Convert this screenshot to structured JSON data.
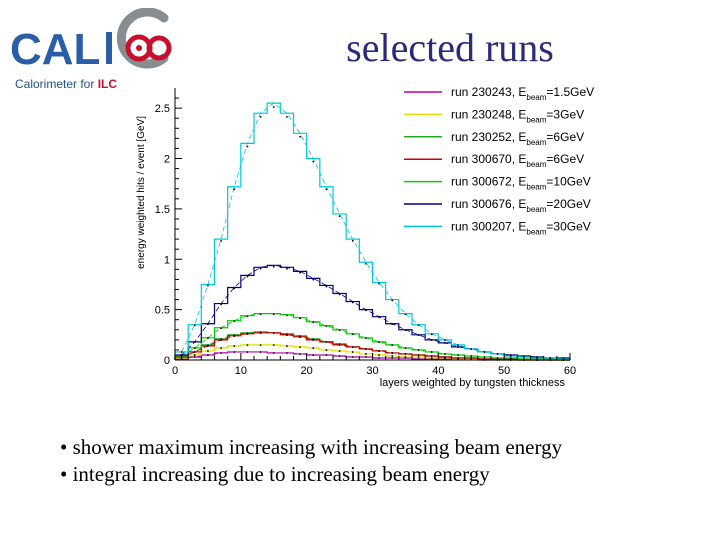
{
  "header": {
    "logo_text": "CALICE",
    "logo_subtitle_prefix": "Calorimeter for ",
    "logo_subtitle_suffix": "ILC",
    "title": "selected runs"
  },
  "chart_data": {
    "type": "line",
    "xlabel": "layers weighted by tungsten thickness",
    "ylabel": "energy weighted hits / event [GeV]",
    "xlim": [
      0,
      60
    ],
    "ylim": [
      0,
      2.7
    ],
    "xticks": [
      0,
      10,
      20,
      30,
      40,
      50,
      60
    ],
    "yticks": [
      0,
      0.5,
      1,
      1.5,
      2,
      2.5
    ],
    "legend_position": "top-right",
    "x": [
      1,
      3,
      5,
      7,
      9,
      11,
      13,
      15,
      17,
      19,
      21,
      23,
      25,
      27,
      29,
      31,
      33,
      35,
      37,
      39,
      41,
      43,
      45,
      47,
      49,
      51,
      53,
      55,
      57,
      59
    ],
    "series": [
      {
        "name": "run 230243",
        "energy": "1.5GeV",
        "color": "#b400b4",
        "values": [
          0.01,
          0.03,
          0.05,
          0.07,
          0.08,
          0.08,
          0.08,
          0.07,
          0.07,
          0.06,
          0.05,
          0.05,
          0.04,
          0.03,
          0.03,
          0.02,
          0.02,
          0.02,
          0.01,
          0.01,
          0.01,
          0.01,
          0.01,
          0.0,
          0.0,
          0.0,
          0.0,
          0.0,
          0.0,
          0.0
        ]
      },
      {
        "name": "run 230248",
        "energy": "3GeV",
        "color": "#e0e000",
        "values": [
          0.02,
          0.05,
          0.09,
          0.12,
          0.14,
          0.15,
          0.15,
          0.15,
          0.14,
          0.13,
          0.12,
          0.1,
          0.09,
          0.08,
          0.06,
          0.05,
          0.04,
          0.03,
          0.03,
          0.02,
          0.02,
          0.01,
          0.01,
          0.01,
          0.01,
          0.0,
          0.0,
          0.0,
          0.0,
          0.0
        ]
      },
      {
        "name": "run 230252",
        "energy": "6GeV",
        "color": "#22aa22",
        "values": [
          0.03,
          0.08,
          0.15,
          0.21,
          0.25,
          0.27,
          0.28,
          0.27,
          0.26,
          0.24,
          0.21,
          0.18,
          0.16,
          0.13,
          0.11,
          0.09,
          0.07,
          0.06,
          0.05,
          0.04,
          0.03,
          0.02,
          0.02,
          0.01,
          0.01,
          0.01,
          0.01,
          0.0,
          0.0,
          0.0
        ]
      },
      {
        "name": "run 300670",
        "energy": "6GeV",
        "color": "#cc0000",
        "values": [
          0.03,
          0.08,
          0.14,
          0.2,
          0.24,
          0.26,
          0.27,
          0.27,
          0.25,
          0.23,
          0.2,
          0.18,
          0.15,
          0.13,
          0.11,
          0.09,
          0.07,
          0.06,
          0.05,
          0.04,
          0.03,
          0.02,
          0.02,
          0.01,
          0.01,
          0.01,
          0.0,
          0.0,
          0.0,
          0.0
        ]
      },
      {
        "name": "run 300672",
        "energy": "10GeV",
        "color": "#00cc00",
        "values": [
          0.04,
          0.12,
          0.22,
          0.32,
          0.39,
          0.44,
          0.46,
          0.46,
          0.45,
          0.42,
          0.38,
          0.34,
          0.3,
          0.26,
          0.22,
          0.18,
          0.15,
          0.12,
          0.1,
          0.08,
          0.06,
          0.05,
          0.04,
          0.03,
          0.02,
          0.02,
          0.01,
          0.01,
          0.01,
          0.0
        ]
      },
      {
        "name": "run 300676",
        "energy": "20GeV",
        "color": "#000080",
        "values": [
          0.05,
          0.18,
          0.36,
          0.56,
          0.72,
          0.84,
          0.92,
          0.94,
          0.92,
          0.88,
          0.81,
          0.74,
          0.66,
          0.58,
          0.5,
          0.43,
          0.36,
          0.3,
          0.25,
          0.2,
          0.17,
          0.13,
          0.11,
          0.08,
          0.06,
          0.05,
          0.04,
          0.03,
          0.02,
          0.02
        ]
      },
      {
        "name": "run 300207",
        "energy": "30GeV",
        "color": "#00c8d8",
        "values": [
          0.08,
          0.35,
          0.75,
          1.2,
          1.72,
          2.15,
          2.45,
          2.55,
          2.45,
          2.25,
          2.0,
          1.72,
          1.45,
          1.2,
          0.97,
          0.77,
          0.6,
          0.46,
          0.35,
          0.26,
          0.2,
          0.15,
          0.11,
          0.08,
          0.06,
          0.04,
          0.03,
          0.02,
          0.02,
          0.01
        ]
      }
    ]
  },
  "bullets": [
    "• shower maximum increasing with increasing beam energy",
    "• integral increasing due to increasing beam energy"
  ]
}
